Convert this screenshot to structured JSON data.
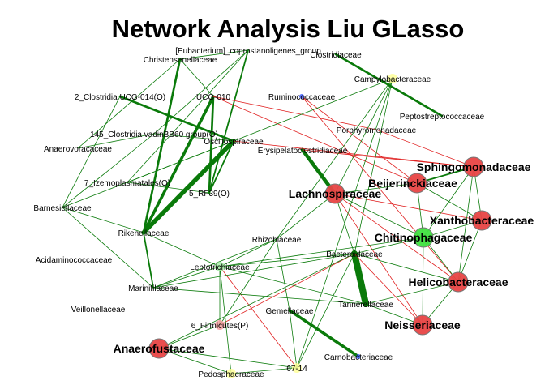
{
  "title": "Network Analysis Liu GLasso",
  "colors": {
    "positive_edge": "#0a7a0a",
    "negative_edge": "#e02020",
    "node_red": "#e84545",
    "node_green": "#40e040",
    "node_yellow": "#ffff99",
    "node_pink": "#f5a0a0",
    "node_lightgreen": "#a8eea8",
    "node_blue": "#4060ff",
    "node_stroke": "#777777"
  },
  "network": {
    "nodes": [
      {
        "id": "eubacterium",
        "label": "[Eubacterium]_coprostanoligenes_group",
        "size": "small",
        "color": "none"
      },
      {
        "id": "christensenellaceae",
        "label": "Christensenellaceae",
        "size": "small",
        "color": "none"
      },
      {
        "id": "clostridiaceae",
        "label": "Clostridiaceae",
        "size": "small",
        "color": "none"
      },
      {
        "id": "campylobacteraceae",
        "label": "Campylobacteraceae",
        "size": "small",
        "color": "yellow"
      },
      {
        "id": "clostridia_ucg014",
        "label": "2_Clostridia UCG-014(O)",
        "size": "small",
        "color": "none"
      },
      {
        "id": "ucg010",
        "label": "UCG-010",
        "size": "small",
        "color": "none"
      },
      {
        "id": "ruminococcaceae",
        "label": "Ruminococcaceae",
        "size": "small",
        "color": "blue"
      },
      {
        "id": "peptostreptococcaceae",
        "label": "Peptostreptococcaceae",
        "size": "small",
        "color": "none"
      },
      {
        "id": "porphyromonadaceae",
        "label": "Porphyromonadaceae",
        "size": "small",
        "color": "none"
      },
      {
        "id": "clostridia_vadin",
        "label": "145_Clostridia vadinBB60 group(O)",
        "size": "small",
        "color": "none"
      },
      {
        "id": "oscillospiraceae",
        "label": "Oscillospiraceae",
        "size": "small",
        "color": "none"
      },
      {
        "id": "anaerovoracaceae",
        "label": "Anaerovoracaceae",
        "size": "small",
        "color": "none"
      },
      {
        "id": "erysipelatoclostridiaceae",
        "label": "Erysipelatoclostridiaceae",
        "size": "small",
        "color": "none"
      },
      {
        "id": "sphingomonadaceae",
        "label": "Sphingomonadaceae",
        "size": "large",
        "color": "red"
      },
      {
        "id": "izemoplasmatales",
        "label": "7_Izemoplasmatales(O)",
        "size": "small",
        "color": "none"
      },
      {
        "id": "beijerinckiaceae",
        "label": "Beijerinckiaceae",
        "size": "large",
        "color": "red"
      },
      {
        "id": "rf39",
        "label": "5_RF39(O)",
        "size": "small",
        "color": "none"
      },
      {
        "id": "lachnospiraceae",
        "label": "Lachnospiraceae",
        "size": "large",
        "color": "red"
      },
      {
        "id": "barnesiellaceae",
        "label": "Barnesiellaceae",
        "size": "small",
        "color": "none"
      },
      {
        "id": "xanthobacteraceae",
        "label": "Xanthobacteraceae",
        "size": "large",
        "color": "red"
      },
      {
        "id": "rikenellaceae",
        "label": "Rikenellaceae",
        "size": "small",
        "color": "none"
      },
      {
        "id": "chitinophagaceae",
        "label": "Chitinophagaceae",
        "size": "large",
        "color": "green"
      },
      {
        "id": "rhizobiaceae",
        "label": "Rhizobiaceae",
        "size": "small",
        "color": "none"
      },
      {
        "id": "bacteroidaceae",
        "label": "Bacteroidaceae",
        "size": "small",
        "color": "none"
      },
      {
        "id": "acidaminococcaceae",
        "label": "Acidaminococcaceae",
        "size": "small",
        "color": "none"
      },
      {
        "id": "leptotrichiaceae",
        "label": "Leptotrichiaceae",
        "size": "small",
        "color": "lightgreen"
      },
      {
        "id": "helicobacteraceae",
        "label": "Helicobacteraceae",
        "size": "large",
        "color": "red"
      },
      {
        "id": "marinifilaceae",
        "label": "Marinifilaceae",
        "size": "small",
        "color": "none"
      },
      {
        "id": "tannerellaceae",
        "label": "Tannerellaceae",
        "size": "small",
        "color": "none"
      },
      {
        "id": "veillonellaceae",
        "label": "Veillonellaceae",
        "size": "small",
        "color": "none"
      },
      {
        "id": "gemellaceae",
        "label": "Gemellaceae",
        "size": "small",
        "color": "none"
      },
      {
        "id": "neisseriaceae",
        "label": "Neisseriaceae",
        "size": "large",
        "color": "red"
      },
      {
        "id": "firmicutes",
        "label": "6_Firmicutes(P)",
        "size": "small",
        "color": "pink"
      },
      {
        "id": "anaerofustaceae",
        "label": "Anaerofustaceae",
        "size": "large",
        "color": "red"
      },
      {
        "id": "carnobacteriaceae",
        "label": "Carnobacteriaceae",
        "size": "small",
        "color": "blue"
      },
      {
        "id": "pedosphaeraceae",
        "label": "Pedosphaeraceae",
        "size": "small",
        "color": "yellow"
      },
      {
        "id": "g6714",
        "label": "67-14",
        "size": "small",
        "color": "yellow"
      }
    ],
    "edges": [
      {
        "source": "christensenellaceae",
        "target": "rikenellaceae",
        "sign": "positive",
        "weight": 3
      },
      {
        "source": "clostridia_ucg014",
        "target": "oscillospiraceae",
        "sign": "positive",
        "weight": 3
      },
      {
        "source": "rikenellaceae",
        "target": "oscillospiraceae",
        "sign": "positive",
        "weight": 6
      },
      {
        "source": "rikenellaceae",
        "target": "ucg010",
        "sign": "positive",
        "weight": 4
      },
      {
        "source": "ucg010",
        "target": "rf39",
        "sign": "positive",
        "weight": 3
      },
      {
        "source": "rf39",
        "target": "oscillospiraceae",
        "sign": "positive",
        "weight": 2
      },
      {
        "source": "eubacterium",
        "target": "rf39",
        "sign": "positive",
        "weight": 2
      },
      {
        "source": "clostridiaceae",
        "target": "peptostreptococcaceae",
        "sign": "positive",
        "weight": 3
      },
      {
        "source": "erysipelatoclostridiaceae",
        "target": "lachnospiraceae",
        "sign": "positive",
        "weight": 5
      },
      {
        "source": "bacteroidaceae",
        "target": "tannerellaceae",
        "sign": "positive",
        "weight": 9
      },
      {
        "source": "gemellaceae",
        "target": "carnobacteriaceae",
        "sign": "positive",
        "weight": 4
      },
      {
        "source": "barnesiellaceae",
        "target": "rikenellaceae",
        "sign": "positive",
        "weight": 1
      },
      {
        "source": "rikenellaceae",
        "target": "marinifilaceae",
        "sign": "positive",
        "weight": 2
      },
      {
        "source": "christensenellaceae",
        "target": "anaerovoracaceae",
        "sign": "positive",
        "weight": 1
      },
      {
        "source": "clostridia_vadin",
        "target": "oscillospiraceae",
        "sign": "positive",
        "weight": 1
      },
      {
        "source": "clostridia_vadin",
        "target": "barnesiellaceae",
        "sign": "positive",
        "weight": 1
      },
      {
        "source": "anaerovoracaceae",
        "target": "clostridia_vadin",
        "sign": "positive",
        "weight": 1
      },
      {
        "source": "barnesiellaceae",
        "target": "oscillospiraceae",
        "sign": "positive",
        "weight": 1
      },
      {
        "source": "izemoplasmatales",
        "target": "oscillospiraceae",
        "sign": "positive",
        "weight": 1
      },
      {
        "source": "izemoplasmatales",
        "target": "rf39",
        "sign": "positive",
        "weight": 1
      },
      {
        "source": "eubacterium",
        "target": "clostridia_vadin",
        "sign": "positive",
        "weight": 1
      },
      {
        "source": "eubacterium",
        "target": "christensenellaceae",
        "sign": "positive",
        "weight": 1
      },
      {
        "source": "eubacterium",
        "target": "izemoplasmatales",
        "sign": "positive",
        "weight": 1
      },
      {
        "source": "clostridia_ucg014",
        "target": "barnesiellaceae",
        "sign": "positive",
        "weight": 1
      },
      {
        "source": "rikenellaceae",
        "target": "leptotrichiaceae",
        "sign": "positive",
        "weight": 1
      },
      {
        "source": "barnesiellaceae",
        "target": "marinifilaceae",
        "sign": "positive",
        "weight": 1
      },
      {
        "source": "ucg010",
        "target": "christensenellaceae",
        "sign": "positive",
        "weight": 1
      },
      {
        "source": "ucg010",
        "target": "porphyromonadaceae",
        "sign": "negative",
        "weight": 1
      },
      {
        "source": "ucg010",
        "target": "beijerinckiaceae",
        "sign": "negative",
        "weight": 1
      },
      {
        "source": "oscillospiraceae",
        "target": "sphingomonadaceae",
        "sign": "negative",
        "weight": 1
      },
      {
        "source": "ruminococcaceae",
        "target": "beijerinckiaceae",
        "sign": "negative",
        "weight": 1
      },
      {
        "source": "ruminococcaceae",
        "target": "helicobacteraceae",
        "sign": "negative",
        "weight": 1
      },
      {
        "source": "porphyromonadaceae",
        "target": "sphingomonadaceae",
        "sign": "negative",
        "weight": 1
      },
      {
        "source": "erysipelatoclostridiaceae",
        "target": "sphingomonadaceae",
        "sign": "negative",
        "weight": 1
      },
      {
        "source": "lachnospiraceae",
        "target": "helicobacteraceae",
        "sign": "negative",
        "weight": 1
      },
      {
        "source": "lachnospiraceae",
        "target": "neisseriaceae",
        "sign": "negative",
        "weight": 1
      },
      {
        "source": "lachnospiraceae",
        "target": "xanthobacteraceae",
        "sign": "negative",
        "weight": 1
      },
      {
        "source": "leptotrichiaceae",
        "target": "g6714",
        "sign": "negative",
        "weight": 1
      },
      {
        "source": "firmicutes",
        "target": "bacteroidaceae",
        "sign": "negative",
        "weight": 1
      },
      {
        "source": "bacteroidaceae",
        "target": "neisseriaceae",
        "sign": "negative",
        "weight": 1
      },
      {
        "source": "campylobacteraceae",
        "target": "lachnospiraceae",
        "sign": "positive",
        "weight": 1
      },
      {
        "source": "campylobacteraceae",
        "target": "oscillospiraceae",
        "sign": "positive",
        "weight": 1
      },
      {
        "source": "campylobacteraceae",
        "target": "bacteroidaceae",
        "sign": "positive",
        "weight": 1
      },
      {
        "source": "campylobacteraceae",
        "target": "rhizobiaceae",
        "sign": "positive",
        "weight": 1
      },
      {
        "source": "sphingomonadaceae",
        "target": "beijerinckiaceae",
        "sign": "positive",
        "weight": 2
      },
      {
        "source": "sphingomonadaceae",
        "target": "xanthobacteraceae",
        "sign": "positive",
        "weight": 1
      },
      {
        "source": "sphingomonadaceae",
        "target": "chitinophagaceae",
        "sign": "positive",
        "weight": 1
      },
      {
        "source": "sphingomonadaceae",
        "target": "helicobacteraceae",
        "sign": "positive",
        "weight": 1
      },
      {
        "source": "beijerinckiaceae",
        "target": "xanthobacteraceae",
        "sign": "positive",
        "weight": 1
      },
      {
        "source": "beijerinckiaceae",
        "target": "chitinophagaceae",
        "sign": "positive",
        "weight": 1
      },
      {
        "source": "beijerinckiaceae",
        "target": "lachnospiraceae",
        "sign": "positive",
        "weight": 1
      },
      {
        "source": "xanthobacteraceae",
        "target": "chitinophagaceae",
        "sign": "positive",
        "weight": 1
      },
      {
        "source": "xanthobacteraceae",
        "target": "helicobacteraceae",
        "sign": "positive",
        "weight": 1
      },
      {
        "source": "chitinophagaceae",
        "target": "helicobacteraceae",
        "sign": "positive",
        "weight": 1
      },
      {
        "source": "chitinophagaceae",
        "target": "neisseriaceae",
        "sign": "positive",
        "weight": 1
      },
      {
        "source": "chitinophagaceae",
        "target": "bacteroidaceae",
        "sign": "positive",
        "weight": 1
      },
      {
        "source": "chitinophagaceae",
        "target": "leptotrichiaceae",
        "sign": "positive",
        "weight": 1
      },
      {
        "source": "chitinophagaceae",
        "target": "lachnospiraceae",
        "sign": "positive",
        "weight": 1
      },
      {
        "source": "helicobacteraceae",
        "target": "neisseriaceae",
        "sign": "positive",
        "weight": 1
      },
      {
        "source": "helicobacteraceae",
        "target": "bacteroidaceae",
        "sign": "positive",
        "weight": 1
      },
      {
        "source": "helicobacteraceae",
        "target": "tannerellaceae",
        "sign": "positive",
        "weight": 1
      },
      {
        "source": "lachnospiraceae",
        "target": "rhizobiaceae",
        "sign": "positive",
        "weight": 1
      },
      {
        "source": "lachnospiraceae",
        "target": "bacteroidaceae",
        "sign": "positive",
        "weight": 1
      },
      {
        "source": "rhizobiaceae",
        "target": "leptotrichiaceae",
        "sign": "positive",
        "weight": 1
      },
      {
        "source": "rhizobiaceae",
        "target": "marinifilaceae",
        "sign": "positive",
        "weight": 1
      },
      {
        "source": "leptotrichiaceae",
        "target": "bacteroidaceae",
        "sign": "positive",
        "weight": 1
      },
      {
        "source": "leptotrichiaceae",
        "target": "tannerellaceae",
        "sign": "positive",
        "weight": 1
      },
      {
        "source": "leptotrichiaceae",
        "target": "marinifilaceae",
        "sign": "positive",
        "weight": 1
      },
      {
        "source": "leptotrichiaceae",
        "target": "pedosphaeraceae",
        "sign": "positive",
        "weight": 1
      },
      {
        "source": "leptotrichiaceae",
        "target": "firmicutes",
        "sign": "positive",
        "weight": 1
      },
      {
        "source": "marinifilaceae",
        "target": "bacteroidaceae",
        "sign": "positive",
        "weight": 1
      },
      {
        "source": "bacteroidaceae",
        "target": "anaerofustaceae",
        "sign": "positive",
        "weight": 1
      },
      {
        "source": "bacteroidaceae",
        "target": "g6714",
        "sign": "positive",
        "weight": 1
      },
      {
        "source": "anaerofustaceae",
        "target": "firmicutes",
        "sign": "positive",
        "weight": 1
      },
      {
        "source": "anaerofustaceae",
        "target": "g6714",
        "sign": "positive",
        "weight": 1
      },
      {
        "source": "anaerofustaceae",
        "target": "pedosphaeraceae",
        "sign": "positive",
        "weight": 1
      },
      {
        "source": "g6714",
        "target": "pedosphaeraceae",
        "sign": "positive",
        "weight": 1
      },
      {
        "source": "g6714",
        "target": "campylobacteraceae",
        "sign": "positive",
        "weight": 1
      },
      {
        "source": "g6714",
        "target": "gemellaceae",
        "sign": "positive",
        "weight": 1
      },
      {
        "source": "neisseriaceae",
        "target": "tannerellaceae",
        "sign": "positive",
        "weight": 1
      },
      {
        "source": "tannerellaceae",
        "target": "marinifilaceae",
        "sign": "positive",
        "weight": 1
      },
      {
        "source": "firmicutes",
        "target": "rhizobiaceae",
        "sign": "positive",
        "weight": 1
      },
      {
        "source": "gemellaceae",
        "target": "rhizobiaceae",
        "sign": "positive",
        "weight": 1
      }
    ]
  }
}
